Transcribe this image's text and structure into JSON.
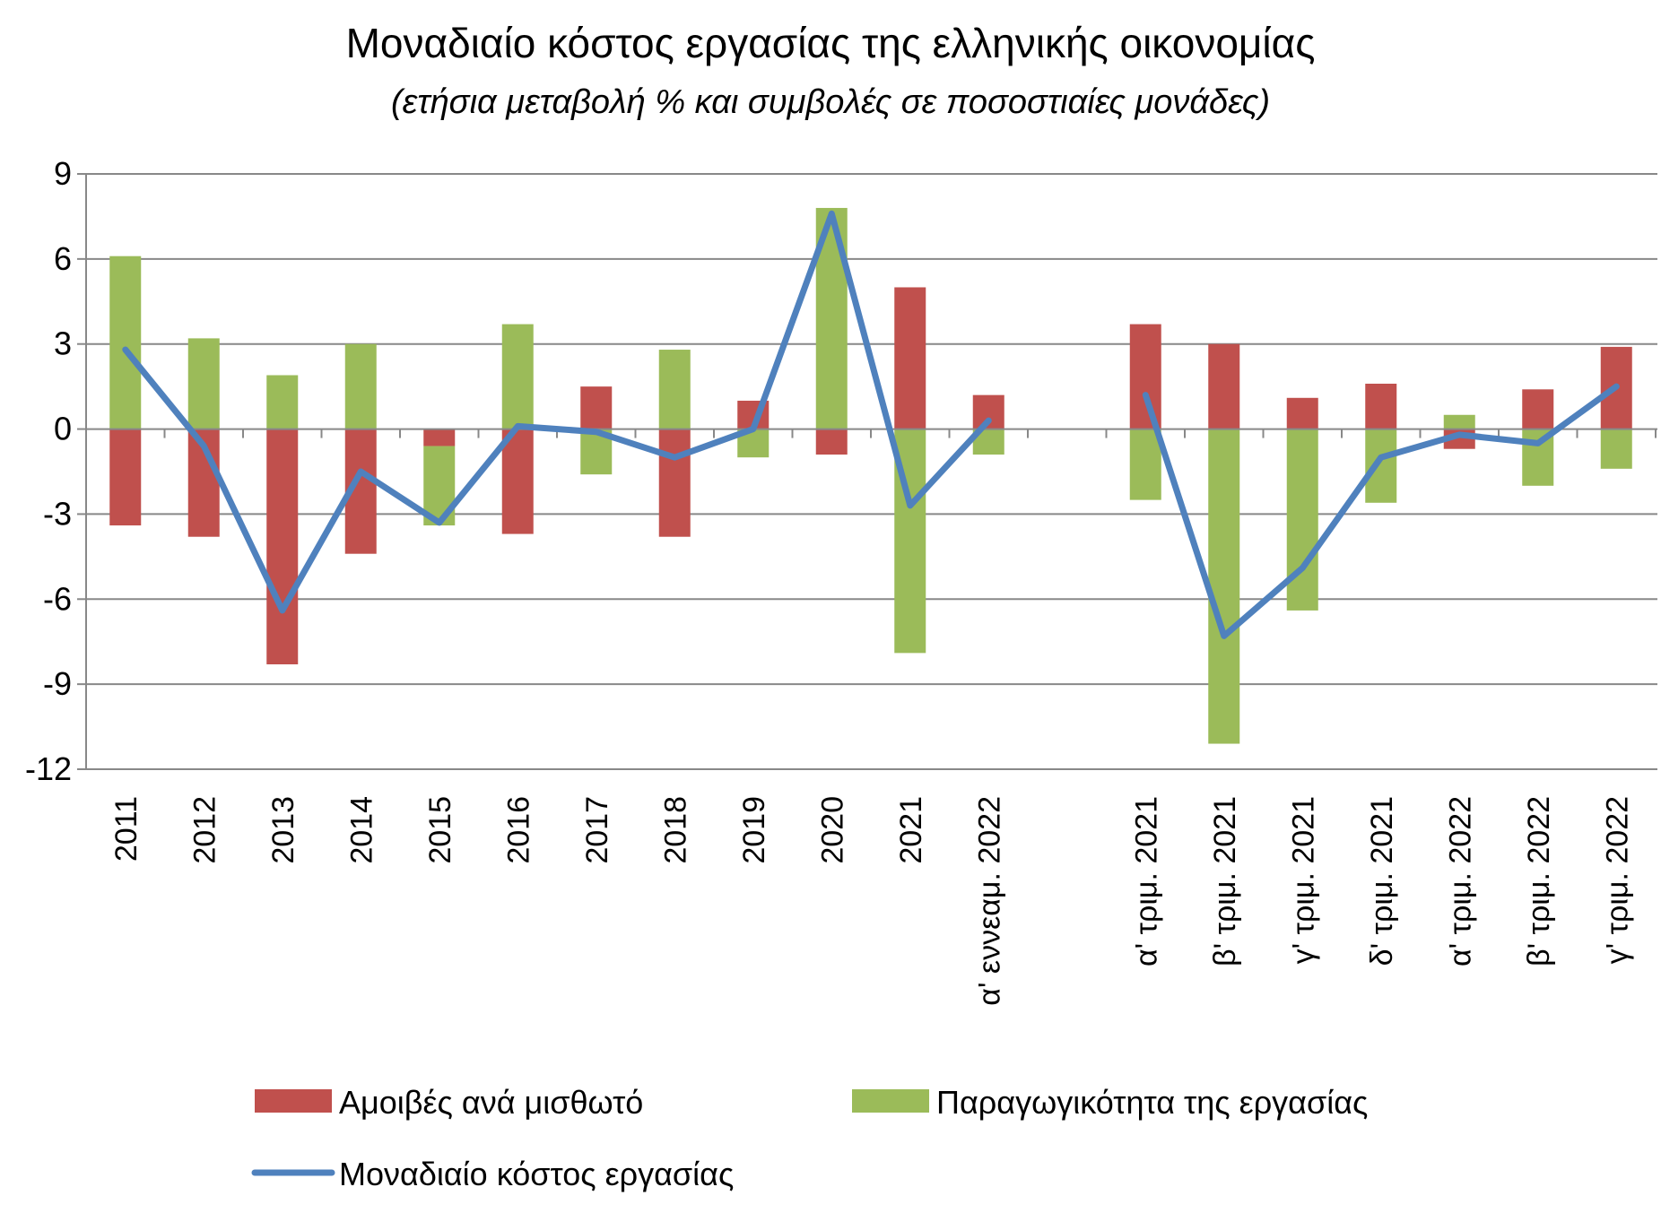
{
  "chart_data": {
    "type": "bar",
    "title": "Μοναδιαίο κόστος εργασίας της ελληνικής οικονομίας",
    "subtitle": "(ετήσια μεταβολή % και συμβολές σε ποσοστιαίες μονάδες)",
    "xlabel": "",
    "ylabel": "",
    "ylim": [
      -12,
      9
    ],
    "yticks": [
      9,
      6,
      3,
      0,
      -3,
      -6,
      -9,
      -12
    ],
    "ytick_labels": [
      "9",
      "6",
      "3",
      "0",
      "-3",
      "-6",
      "-9",
      "-12"
    ],
    "grid": true,
    "stacked": true,
    "legend_position": "bottom",
    "categories": [
      "2011",
      "2012",
      "2013",
      "2014",
      "2015",
      "2016",
      "2017",
      "2018",
      "2019",
      "2020",
      "2021",
      "α' εννεαμ. 2022",
      "",
      "α' τριμ. 2021",
      "β' τριμ. 2021",
      "γ' τριμ. 2021",
      "δ' τριμ. 2021",
      "α' τριμ. 2022",
      "β' τριμ. 2022",
      "γ' τριμ. 2022"
    ],
    "series": [
      {
        "name": "Αμοιβές ανά μισθωτό",
        "kind": "bar",
        "color": "#C0504D",
        "values": [
          -3.4,
          -3.8,
          -8.3,
          -4.4,
          -0.6,
          -3.7,
          1.5,
          -3.8,
          1.0,
          -0.9,
          5.0,
          1.2,
          null,
          3.7,
          3.0,
          1.1,
          1.6,
          -0.7,
          1.4,
          2.9
        ]
      },
      {
        "name": "Παραγωγικότητα της εργασίας",
        "kind": "bar",
        "color": "#9BBB59",
        "values": [
          6.1,
          3.2,
          1.9,
          3.0,
          -2.8,
          3.7,
          -1.6,
          2.8,
          -1.0,
          7.8,
          -7.9,
          -0.9,
          null,
          -2.5,
          -11.1,
          -6.4,
          -2.6,
          0.5,
          -2.0,
          -1.4
        ]
      },
      {
        "name": "Μοναδιαίο κόστος εργασίας",
        "kind": "line",
        "color": "#4F81BD",
        "values": [
          2.8,
          -0.6,
          -6.4,
          -1.5,
          -3.3,
          0.1,
          -0.1,
          -1.0,
          0.0,
          7.6,
          -2.7,
          0.3,
          null,
          1.2,
          -7.3,
          -4.9,
          -1.0,
          -0.2,
          -0.5,
          1.5
        ]
      }
    ]
  }
}
